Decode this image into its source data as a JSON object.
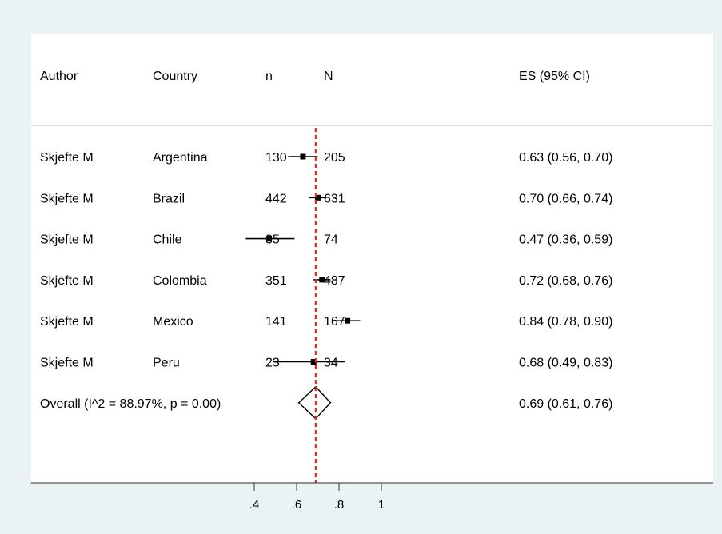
{
  "chart_data": {
    "type": "forest",
    "columns": {
      "author": "Author",
      "country": "Country",
      "n": "n",
      "N": "N",
      "es": "ES (95% CI)"
    },
    "studies": [
      {
        "author": "Skjefte M",
        "country": "Argentina",
        "n": "130",
        "N": "205",
        "es": 0.63,
        "lo": 0.56,
        "hi": 0.7,
        "label": "0.63 (0.56, 0.70)"
      },
      {
        "author": "Skjefte M",
        "country": "Brazil",
        "n": "442",
        "N": "631",
        "es": 0.7,
        "lo": 0.66,
        "hi": 0.74,
        "label": "0.70 (0.66, 0.74)"
      },
      {
        "author": "Skjefte M",
        "country": "Chile",
        "n": "35",
        "N": "74",
        "es": 0.47,
        "lo": 0.36,
        "hi": 0.59,
        "label": "0.47 (0.36, 0.59)"
      },
      {
        "author": "Skjefte M",
        "country": "Colombia",
        "n": "351",
        "N": "487",
        "es": 0.72,
        "lo": 0.68,
        "hi": 0.76,
        "label": "0.72 (0.68, 0.76)"
      },
      {
        "author": "Skjefte M",
        "country": "Mexico",
        "n": "141",
        "N": "167",
        "es": 0.84,
        "lo": 0.78,
        "hi": 0.9,
        "label": "0.84 (0.78, 0.90)"
      },
      {
        "author": "Skjefte M",
        "country": "Peru",
        "n": "23",
        "N": "34",
        "es": 0.68,
        "lo": 0.49,
        "hi": 0.83,
        "label": "0.68 (0.49, 0.83)"
      }
    ],
    "overall": {
      "label_text": "Overall  (I^2 = 88.97%, p = 0.00)",
      "es": 0.69,
      "lo": 0.61,
      "hi": 0.76,
      "label": "0.69 (0.61, 0.76)"
    },
    "x_ticks": [
      {
        "value": 0.4,
        "label": ".4"
      },
      {
        "value": 0.6,
        "label": ".6"
      },
      {
        "value": 0.8,
        "label": ".8"
      },
      {
        "value": 1.0,
        "label": "1"
      }
    ],
    "reference_line": 0.69,
    "colors": {
      "plot_bg": "#ffffff",
      "outer_bg": "#eaf2f3",
      "marker": "#000000",
      "reference_line": "#e8261f"
    }
  }
}
